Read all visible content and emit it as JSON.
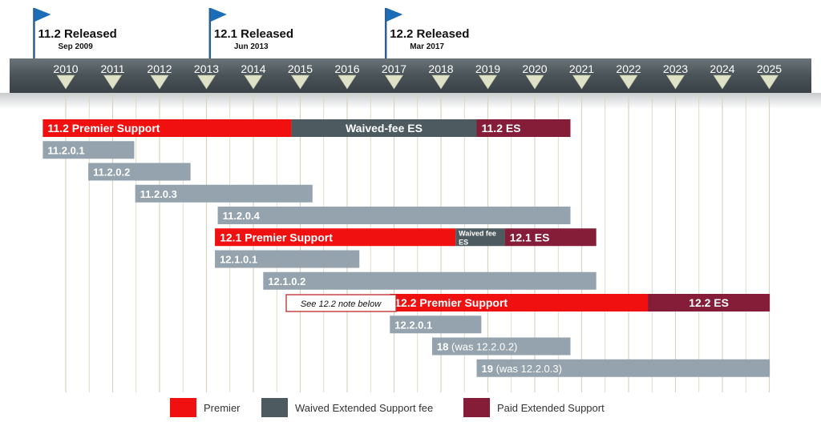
{
  "chart_data": {
    "type": "gantt",
    "years": [
      "2010",
      "2011",
      "2012",
      "2013",
      "2014",
      "2015",
      "2016",
      "2017",
      "2018",
      "2019",
      "2020",
      "2021",
      "2022",
      "2023",
      "2024",
      "2025"
    ],
    "colors": {
      "premier": "#f01010",
      "waived": "#4d5a5f",
      "paid": "#851c38",
      "patch": "#94a3ad",
      "timeline": "#4a5358",
      "flag": "#1b6db8",
      "gridline": "#d9d4bd"
    },
    "releases": [
      {
        "title": "11.2 Released",
        "date": "Sep 2009",
        "x": 2009.7
      },
      {
        "title": "12.1 Released",
        "date": "Jun 2013",
        "x": 2013.45
      },
      {
        "title": "12.2 Released",
        "date": "Mar 2017",
        "x": 2017.2
      }
    ],
    "rows": [
      {
        "segments": [
          {
            "label": "11.2 Premier Support",
            "start": 2009.75,
            "end": 2015.05,
            "kind": "premier",
            "align": "left"
          },
          {
            "label": "Waived-fee ES",
            "start": 2015.05,
            "end": 2019.0,
            "kind": "waived",
            "align": "center"
          },
          {
            "label": "11.2 ES",
            "start": 2019.0,
            "end": 2021.0,
            "kind": "paid",
            "align": "left"
          }
        ]
      },
      {
        "segments": [
          {
            "label": "11.2.0.1",
            "start": 2009.75,
            "end": 2011.7,
            "kind": "patch",
            "align": "left"
          }
        ]
      },
      {
        "segments": [
          {
            "label": "11.2.0.2",
            "start": 2010.72,
            "end": 2012.9,
            "kind": "patch",
            "align": "left"
          }
        ]
      },
      {
        "segments": [
          {
            "label": "11.2.0.3",
            "start": 2011.72,
            "end": 2015.5,
            "kind": "patch",
            "align": "left"
          }
        ]
      },
      {
        "segments": [
          {
            "label": "11.2.0.4",
            "start": 2013.48,
            "end": 2021.0,
            "kind": "patch",
            "align": "left"
          }
        ]
      },
      {
        "segments": [
          {
            "label": "12.1 Premier Support",
            "start": 2013.42,
            "end": 2018.55,
            "kind": "premier",
            "align": "left"
          },
          {
            "label": "Waived fee ES",
            "start": 2018.55,
            "end": 2019.6,
            "kind": "waived",
            "align": "wrap"
          },
          {
            "label": "12.1 ES",
            "start": 2019.6,
            "end": 2021.55,
            "kind": "paid",
            "align": "left"
          }
        ]
      },
      {
        "segments": [
          {
            "label": "12.1.0.1",
            "start": 2013.42,
            "end": 2016.5,
            "kind": "patch",
            "align": "left"
          }
        ]
      },
      {
        "segments": [
          {
            "label": "12.1.0.2",
            "start": 2014.45,
            "end": 2021.55,
            "kind": "patch",
            "align": "left"
          }
        ]
      },
      {
        "segments": [
          {
            "label": "12.2 Premier Support",
            "start": 2017.15,
            "end": 2022.65,
            "kind": "premier",
            "align": "left"
          },
          {
            "label": "12.2 ES",
            "start": 2022.65,
            "end": 2025.25,
            "kind": "paid",
            "align": "center"
          }
        ]
      },
      {
        "segments": [
          {
            "label": "12.2.0.1",
            "start": 2017.15,
            "end": 2019.1,
            "kind": "patch",
            "align": "left"
          }
        ]
      },
      {
        "segments": [
          {
            "label": "18 (was 12.2.0.2)",
            "bold_part": "18",
            "start": 2018.05,
            "end": 2021.0,
            "kind": "patch",
            "align": "left"
          }
        ]
      },
      {
        "segments": [
          {
            "label": "19 (was 12.2.0.3)",
            "bold_part": "19",
            "start": 2019.0,
            "end": 2025.25,
            "kind": "patch",
            "align": "left"
          }
        ]
      }
    ],
    "note": {
      "text": "See 12.2 note below",
      "row": 8
    },
    "legend": [
      {
        "label": "Premier",
        "kind": "premier"
      },
      {
        "label": "Waived Extended Support fee",
        "kind": "waived"
      },
      {
        "label": "Paid Extended Support",
        "kind": "paid"
      }
    ]
  }
}
